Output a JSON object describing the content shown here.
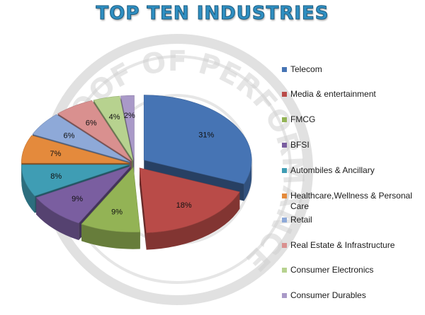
{
  "chart_data": {
    "type": "pie",
    "title": "TOP TEN INDUSTRIES",
    "categories": [
      "Telecom",
      "Media & entertainment",
      "FMCG",
      "BFSI",
      "Autombiles & Ancillary",
      "Healthcare,Wellness & Personal Care",
      "Retail",
      "Real Estate & Infrastructure",
      "Consumer Electronics",
      "Consumer Durables"
    ],
    "values": [
      31,
      18,
      9,
      9,
      8,
      7,
      6,
      6,
      4,
      2
    ],
    "value_labels": [
      "31%",
      "18%",
      "9%",
      "9%",
      "8%",
      "7%",
      "6%",
      "6%",
      "4%",
      "2%"
    ],
    "colors": [
      "#4674b4",
      "#b94b48",
      "#93b355",
      "#7a5ea0",
      "#3f9db4",
      "#e48a3c",
      "#8ea9d8",
      "#d9908f",
      "#b7d28f",
      "#a999c8"
    ],
    "style": "3D exploded pie",
    "legend_position": "right"
  },
  "watermark": {
    "text": "PROOF OF PERFORMANCE"
  }
}
